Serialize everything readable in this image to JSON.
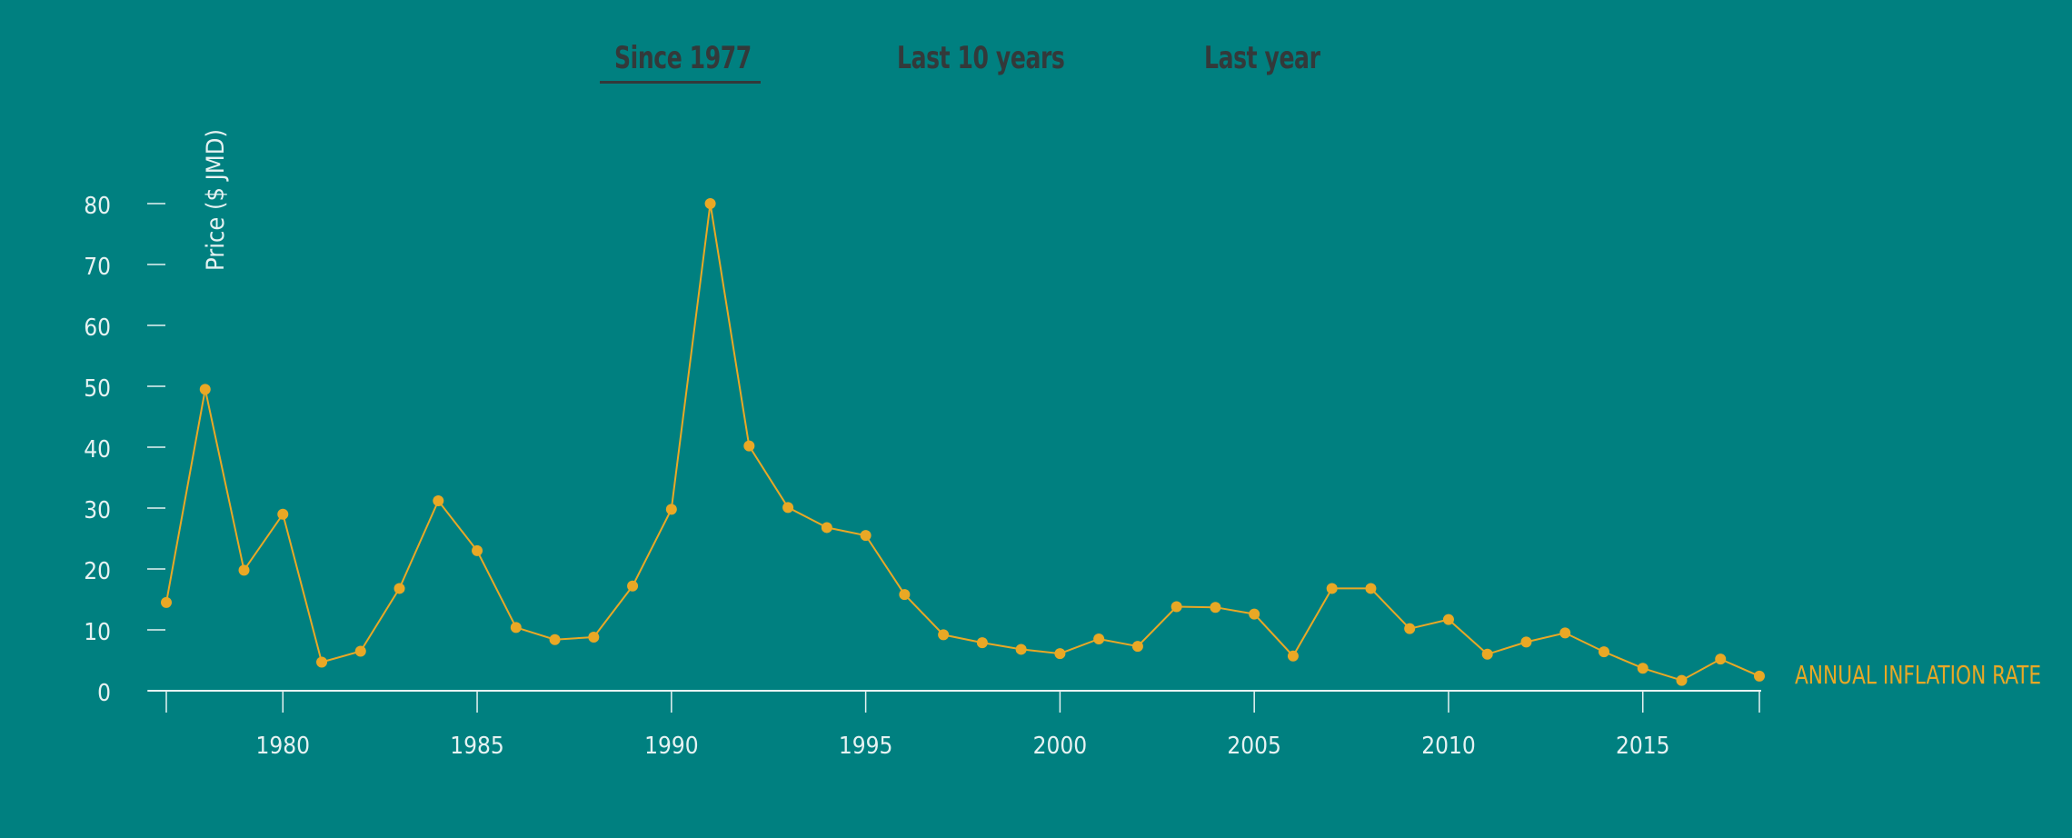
{
  "tabs": {
    "items": [
      {
        "label": "Since 1977",
        "active": true
      },
      {
        "label": "Last 10 years",
        "active": false
      },
      {
        "label": "Last year",
        "active": false
      }
    ]
  },
  "colors": {
    "background": "#008080",
    "line": "#e9a825",
    "axis": "#e6f2f2",
    "tab_text": "#33393a"
  },
  "chart_data": {
    "type": "line",
    "ylabel": "Price ($ JMD)",
    "series_label": "ANNUAL INFLATION RATE",
    "ylim": [
      0,
      80
    ],
    "xlim": [
      1977,
      2018
    ],
    "yticks": [
      0,
      10,
      20,
      30,
      40,
      50,
      60,
      70,
      80
    ],
    "xticks": [
      1980,
      1985,
      1990,
      1995,
      2000,
      2005,
      2010,
      2015
    ],
    "grid": false,
    "series": [
      {
        "x": [
          1977,
          1978,
          1979,
          1980,
          1981,
          1982,
          1983,
          1984,
          1985,
          1986,
          1987,
          1988,
          1989,
          1990,
          1991,
          1992,
          1993,
          1994,
          1995,
          1996,
          1997,
          1998,
          1999,
          2000,
          2001,
          2002,
          2003,
          2004,
          2005,
          2006,
          2007,
          2008,
          2009,
          2010,
          2011,
          2012,
          2013,
          2014,
          2015,
          2016,
          2017,
          2018
        ],
        "values": [
          14.5,
          49.5,
          19.8,
          29.0,
          4.7,
          6.5,
          16.8,
          31.2,
          23.0,
          10.4,
          8.4,
          8.8,
          17.2,
          29.8,
          80.0,
          40.2,
          30.1,
          26.8,
          25.5,
          15.8,
          9.2,
          7.9,
          6.8,
          6.1,
          8.5,
          7.3,
          13.8,
          13.7,
          12.6,
          5.7,
          16.8,
          16.8,
          10.2,
          11.7,
          6.0,
          8.0,
          9.5,
          6.4,
          3.7,
          1.7,
          5.2,
          2.4
        ]
      }
    ]
  }
}
